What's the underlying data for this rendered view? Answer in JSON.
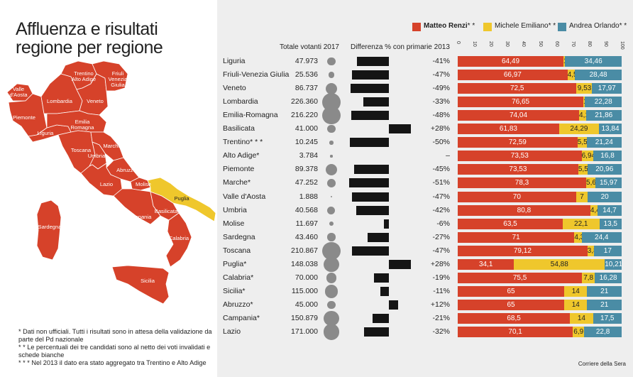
{
  "title_lines": [
    "Affluenza e risultati",
    "regione per regione"
  ],
  "notes": [
    "* Dati non ufficiali. Tutti i risultati sono in attesa della validazione da parte del Pd nazionale",
    "* * Le percentuali dei tre candidati sono al netto dei voti invalidati e schede bianche",
    "* * * Nel 2013 il dato era stato aggregato tra Trentino e Alto Adige"
  ],
  "headers": {
    "total": "Totale votanti 2017",
    "diff": "Differenza % con primarie 2013"
  },
  "legend": [
    {
      "name": "Matteo Renzi",
      "suffix": "* *",
      "color": "#d6422a"
    },
    {
      "name": "Michele Emiliano",
      "suffix": "* *",
      "color": "#efc72c"
    },
    {
      "name": "Andrea Orlando",
      "suffix": "* *",
      "color": "#4a8ca5"
    }
  ],
  "axis_ticks": [
    "0",
    "10",
    "20",
    "30",
    "40",
    "50",
    "60",
    "70",
    "80",
    "90",
    "100"
  ],
  "credit": "Corriere della Sera",
  "map_labels": [
    {
      "id": "valle-daosta",
      "text": [
        "Valle",
        "d'Aosta"
      ]
    },
    {
      "id": "trentino-alto-adige",
      "text": [
        "Trentino",
        "Alto Adige"
      ]
    },
    {
      "id": "friuli",
      "text": [
        "Friuli",
        "Venezia",
        "Giulia"
      ]
    },
    {
      "id": "lombardia",
      "text": [
        "Lombardia"
      ]
    },
    {
      "id": "veneto",
      "text": [
        "Veneto"
      ]
    },
    {
      "id": "piemonte",
      "text": [
        "Piemonte"
      ]
    },
    {
      "id": "emilia",
      "text": [
        "Emilia",
        "Romagna"
      ]
    },
    {
      "id": "liguria",
      "text": [
        "Liguria"
      ]
    },
    {
      "id": "toscana",
      "text": [
        "Toscana"
      ]
    },
    {
      "id": "marche",
      "text": [
        "Marche"
      ]
    },
    {
      "id": "umbria",
      "text": [
        "Umbria"
      ]
    },
    {
      "id": "abruzzo",
      "text": [
        "Abruzzo"
      ]
    },
    {
      "id": "lazio",
      "text": [
        "Lazio"
      ]
    },
    {
      "id": "molise",
      "text": [
        "Molise"
      ]
    },
    {
      "id": "puglia",
      "text": [
        "Puglia"
      ]
    },
    {
      "id": "basilicata",
      "text": [
        "Basilicata"
      ]
    },
    {
      "id": "campania",
      "text": [
        "Campania"
      ]
    },
    {
      "id": "sardegna",
      "text": [
        "Sardegna"
      ]
    },
    {
      "id": "calabria",
      "text": [
        "Calabria"
      ]
    },
    {
      "id": "sicilia",
      "text": [
        "Sicilia"
      ]
    }
  ],
  "chart_data": {
    "type": "table",
    "columns": [
      "Regione",
      "Totale votanti 2017",
      "Differenza % con primarie 2013",
      "Matteo Renzi",
      "Michele Emiliano",
      "Andrea Orlando"
    ],
    "xlim": [
      0,
      100
    ],
    "diff_range": [
      -60,
      30
    ],
    "rows": [
      {
        "region": "Liguria",
        "total": "47.973",
        "total_value": 47973,
        "diff_label": "-41%",
        "diff": -41,
        "renzi": 64.49,
        "emiliano": 1,
        "orlando": 34.46
      },
      {
        "region": "Friuli-Venezia Giulia",
        "total": "25.536",
        "total_value": 25536,
        "diff_label": "-47%",
        "diff": -47,
        "renzi": 66.97,
        "emiliano": 4.55,
        "orlando": 28.48
      },
      {
        "region": "Veneto",
        "total": "86.737",
        "total_value": 86737,
        "diff_label": "-49%",
        "diff": -49,
        "renzi": 72.5,
        "emiliano": 9.53,
        "orlando": 17.97
      },
      {
        "region": "Lombardia",
        "total": "226.360",
        "total_value": 226360,
        "diff_label": "-33%",
        "diff": -33,
        "renzi": 76.65,
        "emiliano": 1,
        "orlando": 22.28
      },
      {
        "region": "Emilia-Romagna",
        "total": "216.220",
        "total_value": 216220,
        "diff_label": "-48%",
        "diff": -48,
        "renzi": 74.04,
        "emiliano": 4.1,
        "orlando": 21.86
      },
      {
        "region": "Basilicata",
        "total": "41.000",
        "total_value": 41000,
        "diff_label": "+28%",
        "diff": 28,
        "renzi": 61.83,
        "emiliano": 24.29,
        "orlando": 13.84
      },
      {
        "region": "Trentino* * *",
        "total": "10.245",
        "total_value": 10245,
        "diff_label": "-50%",
        "diff": -50,
        "renzi": 72.59,
        "emiliano": 5.54,
        "orlando": 21.24
      },
      {
        "region": "Alto Adige*",
        "total": "3.784",
        "total_value": 3784,
        "diff_label": "–",
        "diff": null,
        "renzi": 73.53,
        "emiliano": 6.94,
        "orlando": 16.8
      },
      {
        "region": "Piemonte",
        "total": "89.378",
        "total_value": 89378,
        "diff_label": "-45%",
        "diff": -45,
        "renzi": 73.53,
        "emiliano": 5.5,
        "orlando": 20.96
      },
      {
        "region": "Marche*",
        "total": "47.252",
        "total_value": 47252,
        "diff_label": "-51%",
        "diff": -51,
        "renzi": 78.3,
        "emiliano": 5.63,
        "orlando": 15.97
      },
      {
        "region": "Valle d'Aosta",
        "total": "1.888",
        "total_value": 1888,
        "diff_label": "-47%",
        "diff": -47,
        "renzi": 70,
        "emiliano": 7,
        "orlando": 20
      },
      {
        "region": "Umbria",
        "total": "40.568",
        "total_value": 40568,
        "diff_label": "-42%",
        "diff": -42,
        "renzi": 80.8,
        "emiliano": 4.4,
        "orlando": 14.7
      },
      {
        "region": "Molise",
        "total": "11.697",
        "total_value": 11697,
        "diff_label": "-6%",
        "diff": -6,
        "renzi": 63.5,
        "emiliano": 22.1,
        "orlando": 13.5
      },
      {
        "region": "Sardegna",
        "total": "43.460",
        "total_value": 43460,
        "diff_label": "-27%",
        "diff": -27,
        "renzi": 71,
        "emiliano": 4.39,
        "orlando": 24.4
      },
      {
        "region": "Toscana",
        "total": "210.867",
        "total_value": 210867,
        "diff_label": "-47%",
        "diff": -47,
        "renzi": 79.12,
        "emiliano": 3.88,
        "orlando": 17
      },
      {
        "region": "Puglia*",
        "total": "148.038",
        "total_value": 148038,
        "diff_label": "+28%",
        "diff": 28,
        "renzi": 34.1,
        "emiliano": 54.88,
        "orlando": 10.21
      },
      {
        "region": "Calabria*",
        "total": "70.000",
        "total_value": 70000,
        "diff_label": "-19%",
        "diff": -19,
        "renzi": 75.5,
        "emiliano": 7.8,
        "orlando": 16.28
      },
      {
        "region": "Sicilia*",
        "total": "115.000",
        "total_value": 115000,
        "diff_label": "-11%",
        "diff": -11,
        "renzi": 65,
        "emiliano": 14,
        "orlando": 21
      },
      {
        "region": "Abruzzo*",
        "total": "45.000",
        "total_value": 45000,
        "diff_label": "+12%",
        "diff": 12,
        "renzi": 65,
        "emiliano": 14,
        "orlando": 21
      },
      {
        "region": "Campania*",
        "total": "150.879",
        "total_value": 150879,
        "diff_label": "-21%",
        "diff": -21,
        "renzi": 68.5,
        "emiliano": 14,
        "orlando": 17.5
      },
      {
        "region": "Lazio",
        "total": "171.000",
        "total_value": 171000,
        "diff_label": "-32%",
        "diff": -32,
        "renzi": 70.1,
        "emiliano": 6.9,
        "orlando": 22.8
      }
    ]
  }
}
